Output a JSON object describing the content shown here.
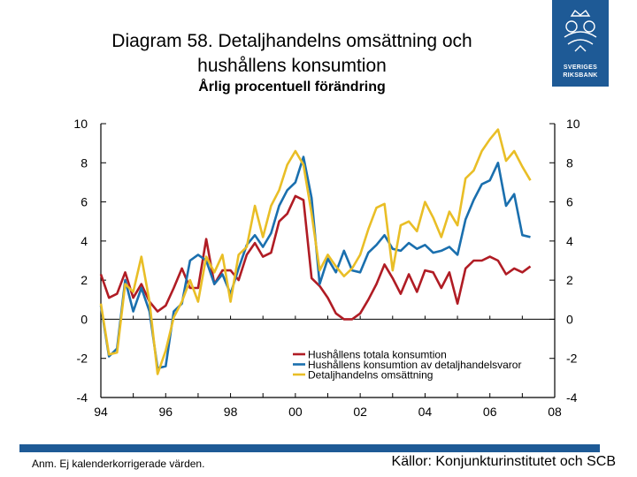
{
  "title_line1": "Diagram 58. Detaljhandelns omsättning och",
  "title_line2": "hushållens konsumtion",
  "subtitle": "Årlig procentuell förändring",
  "logo_line1": "SVERIGES",
  "logo_line2": "RIKSBANK",
  "note": "Anm. Ej kalenderkorrigerade värden.",
  "source": "Källor: Konjunkturinstitutet och SCB",
  "chart_data": {
    "type": "line",
    "xlim": [
      1994,
      2008
    ],
    "ylim": [
      -4,
      10
    ],
    "yticks": [
      "-4",
      "-2",
      "0",
      "2",
      "4",
      "6",
      "8",
      "10"
    ],
    "xticks": [
      "94",
      "96",
      "98",
      "00",
      "02",
      "04",
      "06",
      "08"
    ],
    "legend_position": "bottom-center",
    "series": [
      {
        "name": "Hushållens totala konsumtion",
        "color": "#b01c24",
        "x": [
          1994.0,
          1994.25,
          1994.5,
          1994.75,
          1995.0,
          1995.25,
          1995.5,
          1995.75,
          1996.0,
          1996.25,
          1996.5,
          1996.75,
          1997.0,
          1997.25,
          1997.5,
          1997.75,
          1998.0,
          1998.25,
          1998.5,
          1998.75,
          1999.0,
          1999.25,
          1999.5,
          1999.75,
          2000.0,
          2000.25,
          2000.5,
          2000.75,
          2001.0,
          2001.25,
          2001.5,
          2001.75,
          2002.0,
          2002.25,
          2002.5,
          2002.75,
          2003.0,
          2003.25,
          2003.5,
          2003.75,
          2004.0,
          2004.25,
          2004.5,
          2004.75,
          2005.0,
          2005.25,
          2005.5,
          2005.75,
          2006.0,
          2006.25,
          2006.5,
          2006.75,
          2007.0,
          2007.25
        ],
        "values": [
          2.3,
          1.1,
          1.3,
          2.4,
          1.1,
          1.8,
          0.9,
          0.4,
          0.7,
          1.6,
          2.6,
          1.6,
          1.6,
          4.1,
          1.8,
          2.5,
          2.5,
          2.0,
          3.3,
          3.9,
          3.2,
          3.4,
          5.0,
          5.4,
          6.3,
          6.1,
          2.1,
          1.7,
          1.1,
          0.3,
          0.0,
          0.0,
          0.3,
          1.0,
          1.8,
          2.8,
          2.1,
          1.3,
          2.3,
          1.4,
          2.5,
          2.4,
          1.6,
          2.4,
          0.8,
          2.6,
          3.0,
          3.0,
          3.2,
          3.0,
          2.3,
          2.6,
          2.4,
          2.7
        ]
      },
      {
        "name": "Hushållens konsumtion av detaljhandelsvaror",
        "color": "#1a6fae",
        "x": [
          1994.0,
          1994.25,
          1994.5,
          1994.75,
          1995.0,
          1995.25,
          1995.5,
          1995.75,
          1996.0,
          1996.25,
          1996.5,
          1996.75,
          1997.0,
          1997.25,
          1997.5,
          1997.75,
          1998.0,
          1998.25,
          1998.5,
          1998.75,
          1999.0,
          1999.25,
          1999.5,
          1999.75,
          2000.0,
          2000.25,
          2000.5,
          2000.75,
          2001.0,
          2001.25,
          2001.5,
          2001.75,
          2002.0,
          2002.25,
          2002.5,
          2002.75,
          2003.0,
          2003.25,
          2003.5,
          2003.75,
          2004.0,
          2004.25,
          2004.5,
          2004.75,
          2005.0,
          2005.25,
          2005.5,
          2005.75,
          2006.0,
          2006.25,
          2006.5,
          2006.75,
          2007.0,
          2007.25
        ],
        "values": [
          0.7,
          -1.9,
          -1.5,
          2.0,
          0.4,
          1.6,
          0.4,
          -2.5,
          -2.4,
          0.4,
          0.8,
          3.0,
          3.3,
          3.0,
          1.8,
          2.3,
          1.3,
          2.6,
          3.8,
          4.3,
          3.7,
          4.4,
          5.8,
          6.6,
          7.0,
          8.3,
          6.2,
          1.8,
          3.1,
          2.4,
          3.5,
          2.5,
          2.4,
          3.4,
          3.8,
          4.3,
          3.6,
          3.5,
          3.9,
          3.6,
          3.8,
          3.4,
          3.5,
          3.7,
          3.3,
          5.1,
          6.1,
          6.9,
          7.1,
          8.0,
          5.8,
          6.4,
          4.3,
          4.2
        ]
      },
      {
        "name": "Detaljhandelns omsättning",
        "color": "#e9be26",
        "x": [
          1994.0,
          1994.25,
          1994.5,
          1994.75,
          1995.0,
          1995.25,
          1995.5,
          1995.75,
          1996.0,
          1996.25,
          1996.5,
          1996.75,
          1997.0,
          1997.25,
          1997.5,
          1997.75,
          1998.0,
          1998.25,
          1998.5,
          1998.75,
          1999.0,
          1999.25,
          1999.5,
          1999.75,
          2000.0,
          2000.25,
          2000.5,
          2000.75,
          2001.0,
          2001.25,
          2001.5,
          2001.75,
          2002.0,
          2002.25,
          2002.5,
          2002.75,
          2003.0,
          2003.25,
          2003.5,
          2003.75,
          2004.0,
          2004.25,
          2004.5,
          2004.75,
          2005.0,
          2005.25,
          2005.5,
          2005.75,
          2006.0,
          2006.25,
          2006.5,
          2006.75,
          2007.0,
          2007.25
        ],
        "values": [
          0.8,
          -1.8,
          -1.7,
          1.8,
          1.4,
          3.2,
          0.9,
          -2.8,
          -1.6,
          0.1,
          0.9,
          2.0,
          0.9,
          3.2,
          2.4,
          3.3,
          0.9,
          3.3,
          3.7,
          5.8,
          4.2,
          5.8,
          6.6,
          7.9,
          8.6,
          7.9,
          5.4,
          2.5,
          3.3,
          2.7,
          2.2,
          2.6,
          3.3,
          4.6,
          5.7,
          5.9,
          2.5,
          4.8,
          5.0,
          4.5,
          6.0,
          5.2,
          4.2,
          5.5,
          4.8,
          7.2,
          7.6,
          8.6,
          9.2,
          9.7,
          8.1,
          8.6,
          7.8,
          7.1
        ]
      }
    ]
  }
}
